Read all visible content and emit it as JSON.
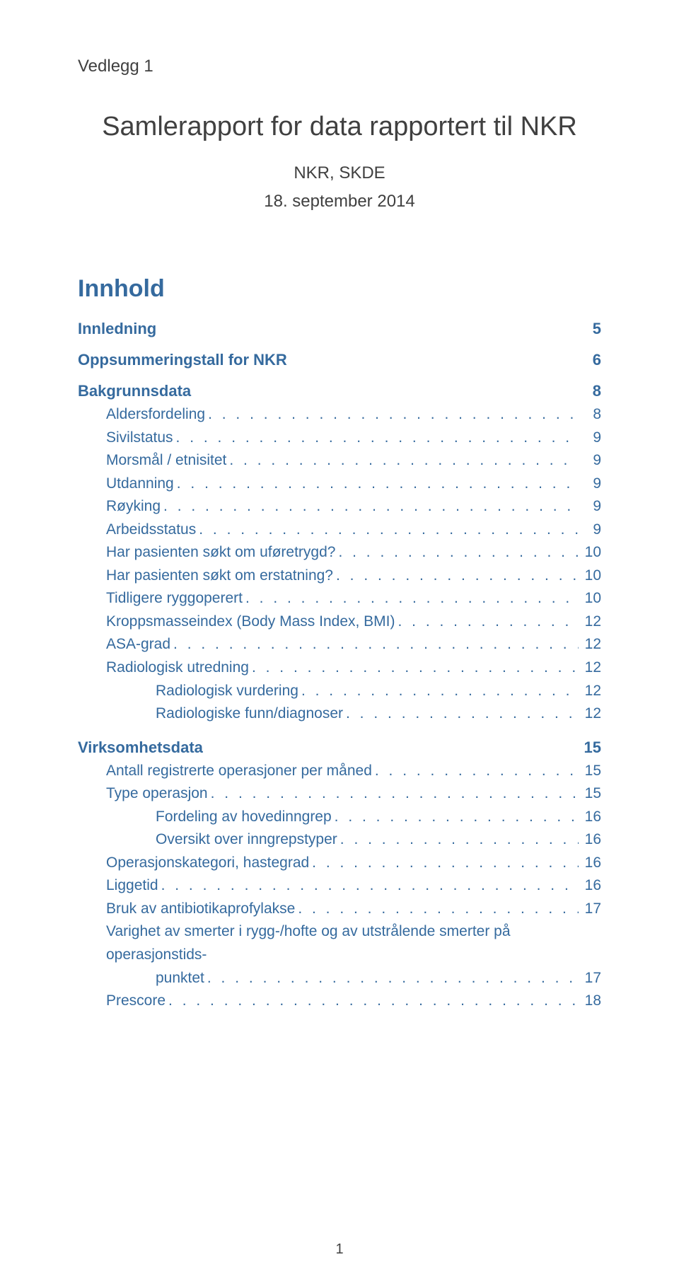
{
  "header_label": "Vedlegg 1",
  "title": "Samlerapport for data rapportert til NKR",
  "subtitle": "NKR, SKDE",
  "date": "18. september 2014",
  "toc_heading": "Innhold",
  "sections": [
    {
      "label": "Innledning",
      "page": "5"
    },
    {
      "label": "Oppsummeringstall for NKR",
      "page": "6"
    }
  ],
  "bakgrunn": {
    "heading": "Bakgrunnsdata",
    "page": "8",
    "items": [
      {
        "label": "Aldersfordeling",
        "page": "8",
        "indent": 1
      },
      {
        "label": "Sivilstatus",
        "page": "9",
        "indent": 1
      },
      {
        "label": "Morsmål / etnisitet",
        "page": "9",
        "indent": 1
      },
      {
        "label": "Utdanning",
        "page": "9",
        "indent": 1
      },
      {
        "label": "Røyking",
        "page": "9",
        "indent": 1
      },
      {
        "label": "Arbeidsstatus",
        "page": "9",
        "indent": 1
      },
      {
        "label": "Har pasienten søkt om uføretrygd?",
        "page": "10",
        "indent": 1
      },
      {
        "label": "Har pasienten søkt om erstatning?",
        "page": "10",
        "indent": 1
      },
      {
        "label": "Tidligere ryggoperert",
        "page": "10",
        "indent": 1
      },
      {
        "label": "Kroppsmasseindex (Body Mass Index, BMI)",
        "page": "12",
        "indent": 1
      },
      {
        "label": "ASA-grad",
        "page": "12",
        "indent": 1
      },
      {
        "label": "Radiologisk utredning",
        "page": "12",
        "indent": 1
      },
      {
        "label": "Radiologisk vurdering",
        "page": "12",
        "indent": 2
      },
      {
        "label": "Radiologiske funn/diagnoser",
        "page": "12",
        "indent": 2
      }
    ]
  },
  "virksomhet": {
    "heading": "Virksomhetsdata",
    "page": "15",
    "items": [
      {
        "label": "Antall registrerte operasjoner per måned",
        "page": "15",
        "indent": 1
      },
      {
        "label": "Type operasjon",
        "page": "15",
        "indent": 1
      },
      {
        "label": "Fordeling av hovedinngrep",
        "page": "16",
        "indent": 2
      },
      {
        "label": "Oversikt over inngrepstyper",
        "page": "16",
        "indent": 2
      },
      {
        "label": "Operasjonskategori, hastegrad",
        "page": "16",
        "indent": 1
      },
      {
        "label": "Liggetid",
        "page": "16",
        "indent": 1
      },
      {
        "label": "Bruk av antibiotikaprofylakse",
        "page": "17",
        "indent": 1
      }
    ],
    "wrap_item": {
      "line1": "Varighet av smerter i rygg-/hofte og av utstrålende smerter på operasjonstids-",
      "line2_label": "punktet",
      "page": "17"
    },
    "last": {
      "label": "Prescore",
      "page": "18",
      "indent": 1
    }
  },
  "page_number": "1",
  "colors": {
    "link": "#356a9e",
    "text": "#404040",
    "background": "#ffffff"
  },
  "typography": {
    "title_fontsize": 38,
    "section_fontsize": 22,
    "item_fontsize": 21,
    "header_fontsize": 24
  }
}
